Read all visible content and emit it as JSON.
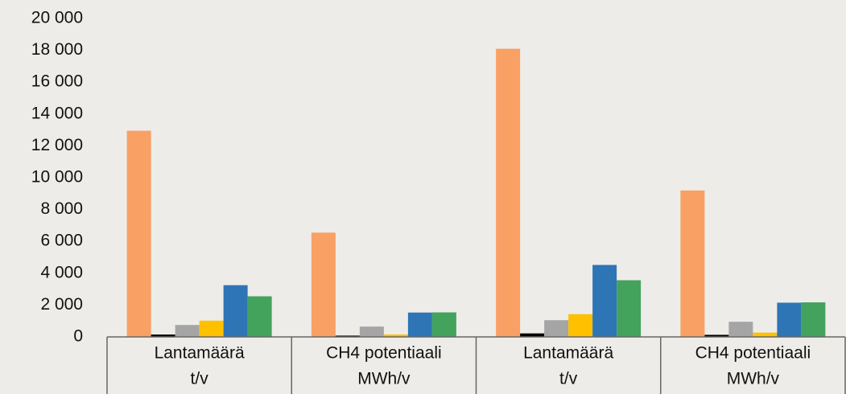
{
  "chart_data": {
    "type": "bar",
    "categories": [
      [
        "Lantamäärä",
        "t/v"
      ],
      [
        "CH4 potentiaali",
        "MWh/v"
      ],
      [
        "Lantamäärä",
        "t/v"
      ],
      [
        "CH4 potentiaali",
        "MWh/v"
      ]
    ],
    "series": [
      {
        "color": "#f9a065",
        "values": [
          12950,
          6550,
          18100,
          9200
        ]
      },
      {
        "color": "#000000",
        "values": [
          150,
          80,
          220,
          130
        ]
      },
      {
        "color": "#a5a5a5",
        "values": [
          750,
          650,
          1050,
          950
        ]
      },
      {
        "color": "#ffc000",
        "values": [
          1020,
          150,
          1430,
          270
        ]
      },
      {
        "color": "#2e75b6",
        "values": [
          3250,
          1530,
          4520,
          2150
        ]
      },
      {
        "color": "#43a35c",
        "values": [
          2550,
          1540,
          3560,
          2170
        ]
      }
    ],
    "ylim": [
      0,
      20000
    ],
    "yticks": [
      0,
      {
        "value": 2000,
        "label": "2 000"
      },
      {
        "value": 4000,
        "label": "4 000"
      },
      {
        "value": 6000,
        "label": "6 000"
      },
      {
        "value": 8000,
        "label": "8 000"
      },
      {
        "value": 10000,
        "label": "10 000"
      },
      {
        "value": 12000,
        "label": "12 000"
      },
      {
        "value": 14000,
        "label": "14 000"
      },
      {
        "value": 16000,
        "label": "16 000"
      },
      {
        "value": 18000,
        "label": "18 000"
      },
      {
        "value": 20000,
        "label": "20 000"
      }
    ],
    "grid": false
  }
}
